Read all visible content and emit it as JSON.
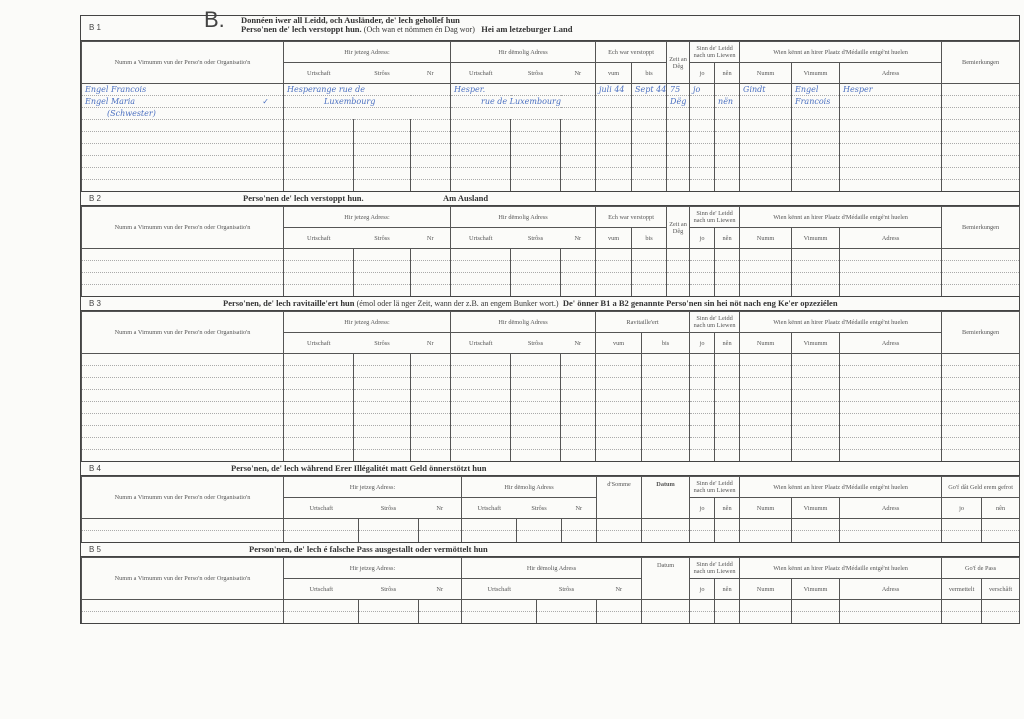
{
  "labels": {
    "name_col": "Numm a Virnumm vun der Perso'n oder Organisatio'n",
    "current_address": "Hir jetzeg Adress:",
    "former_address": "Hir dëmolig Adress",
    "town": "Urtschaft",
    "street": "Strôss",
    "nr": "Nr",
    "hidden": "Ech war verstoppt",
    "from": "vum",
    "to": "bis",
    "time_days": "Zeit an Dêg",
    "alive": "Sinn de' Leidd nach um Liewen",
    "yes": "jo",
    "no": "nên",
    "medal": "Wien kënnt an hirer Plaatz d'Médaille entgé'nt huelen",
    "surname": "Numm",
    "firstname": "Vimumm",
    "address": "Adress",
    "remarks": "Bemierkungen",
    "supplied": "Ravitaille'ert",
    "sum": "d'Somme",
    "date": "Datum",
    "money_given": "Go'f dât Geld erem gefrot",
    "pass_given": "Go'f de Pass",
    "issued": "vermettelt",
    "obtained": "verschâft"
  },
  "sections": {
    "b1": {
      "code": "B 1",
      "letter": "B.",
      "title_line1": "Donnéen iwer all Leidd, och Ausländer, de' lech gehollef hun",
      "title_line2": "Perso'nen de' lech verstoppt hun.",
      "title_note": "(Och wan et nömmen én Dag wor)",
      "title_place": "Hei am letzeburger Land",
      "entries": [
        {
          "name": "Engel Francois",
          "cur1": "Hesperange rue de",
          "old1": "Hesper.",
          "from": "juli 44",
          "to": "Sept 44",
          "days": "75",
          "yes": "jo",
          "m_name": "Gindt",
          "m_first": "Engel",
          "m_addr": "Hesper"
        },
        {
          "name": "Engel Maria",
          "cur1": "Luxembourg",
          "old1": "rue de Luxembourg",
          "days": "Dëg",
          "no": "nën",
          "m_first": "Francois"
        },
        {
          "name": "(Schwester)"
        }
      ],
      "checkmark": "✓"
    },
    "b2": {
      "code": "B 2",
      "title": "Perso'nen de' lech verstoppt hun.",
      "title_place": "Am Ausland"
    },
    "b3": {
      "code": "B 3",
      "title": "Perso'nen, de' lech ravitaille'ert hun",
      "title_note": "(émol oder lä nger Zeit, wann der z.B. an engem Bunker wort.)",
      "title_tail": "De' önner B1 a B2 genannte Perso'nen sin hei nöt nach eng Ke'er opzeziélen"
    },
    "b4": {
      "code": "B 4",
      "title": "Perso'nen, de' lech während Erer Illégalitét matt Geld önnerstötzt hun"
    },
    "b5": {
      "code": "B 5",
      "title": "Person'nen, de' lech é falsche Pass ausgestallt oder vermöttelt hun"
    }
  }
}
